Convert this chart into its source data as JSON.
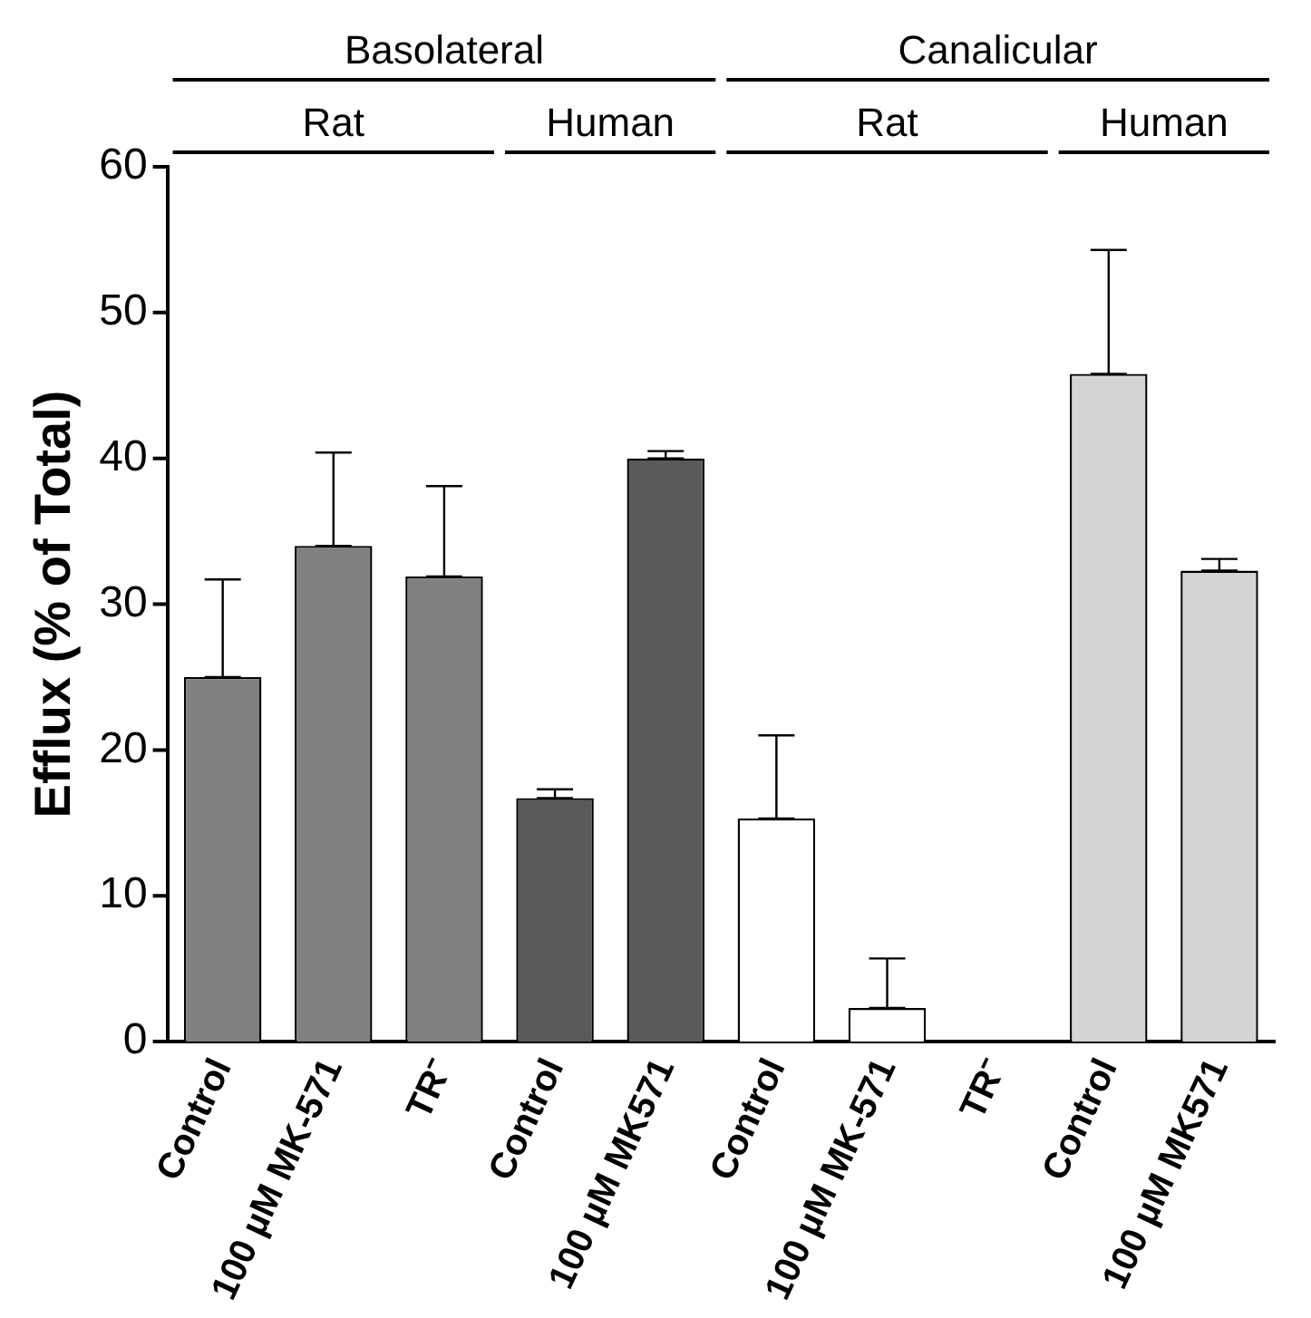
{
  "chart_data": {
    "type": "bar",
    "ylabel": "Efflux (% of Total)",
    "categories": [
      "Control",
      "100 µM MK-571",
      "TR⁻",
      "Control",
      "100 µM MK571",
      "Control",
      "100 µM MK-571",
      "TR⁻",
      "Control",
      "100 µM MK571"
    ],
    "values": [
      25,
      34,
      31.9,
      16.7,
      40,
      15.3,
      2.3,
      0,
      45.8,
      32.3
    ],
    "errors": [
      [
        25,
        31.7
      ],
      [
        34,
        40.4
      ],
      [
        31.9,
        38.1
      ],
      [
        16.7,
        17.3
      ],
      [
        40,
        40.5
      ],
      [
        15.3,
        21
      ],
      [
        2.3,
        5.7
      ],
      null,
      [
        45.8,
        54.3
      ],
      [
        32.3,
        33.1
      ]
    ],
    "colors": [
      "#808080",
      "#808080",
      "#808080",
      "#5a5a5a",
      "#5a5a5a",
      "#ffffff",
      "#ffffff",
      "#ffffff",
      "#d4d4d4",
      "#d4d4d4"
    ],
    "ylim": [
      0,
      60
    ],
    "yticks": [
      0,
      10,
      20,
      30,
      40,
      50,
      60
    ],
    "grid": false,
    "legend": false,
    "annotations": [
      "Basolateral",
      "Canalicular",
      "Rat",
      "Human",
      "Rat",
      "Human"
    ]
  }
}
